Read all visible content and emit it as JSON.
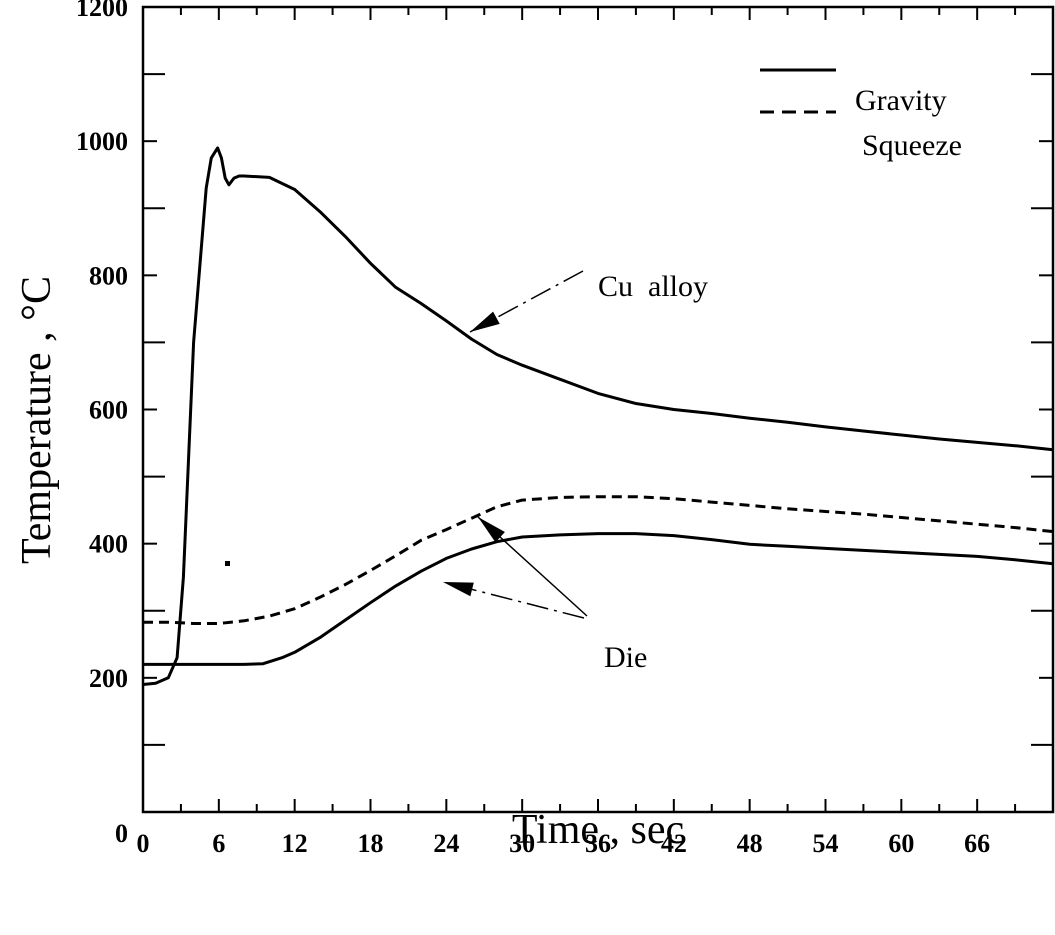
{
  "chart_data": {
    "type": "line",
    "xlabel": "Time , sec",
    "ylabel": "Temperature , °C",
    "xlim": [
      0,
      72
    ],
    "ylim": [
      0,
      1200
    ],
    "x_ticks": [
      "0",
      "6",
      "12",
      "18",
      "24",
      "30",
      "36",
      "42",
      "48",
      "54",
      "60",
      "66"
    ],
    "y_ticks": [
      "0",
      "200",
      "400",
      "600",
      "800",
      "1000",
      "1200"
    ],
    "grid": false,
    "legend": {
      "placement": "top-right",
      "entries": [
        {
          "label": "Gravity",
          "style": "solid"
        },
        {
          "label": "Squeeze",
          "style": "dashed"
        }
      ]
    },
    "annotations": [
      {
        "text": "Cu  alloy"
      },
      {
        "text": "Die"
      }
    ],
    "series": [
      {
        "style": "solid",
        "color": "#000000",
        "x": [
          0,
          1,
          2,
          2.7,
          3.2,
          4,
          5,
          5.4,
          5.9,
          6.2,
          6.5,
          6.8,
          7.2,
          7.6,
          8,
          10,
          12,
          14,
          16,
          18,
          20,
          22,
          24,
          26,
          28,
          30,
          33,
          36,
          39,
          42,
          45,
          48,
          51,
          54,
          57,
          60,
          63,
          66,
          69,
          72
        ],
        "y": [
          190,
          192,
          200,
          230,
          350,
          700,
          930,
          975,
          990,
          975,
          945,
          935,
          945,
          948,
          948,
          946,
          928,
          895,
          858,
          818,
          782,
          758,
          732,
          705,
          682,
          666,
          645,
          624,
          609,
          600,
          594,
          587,
          581,
          574,
          568,
          562,
          556,
          551,
          546,
          540
        ]
      },
      {
        "style": "solid",
        "color": "#000000",
        "x": [
          0,
          2,
          4,
          6,
          8,
          9.5,
          11,
          12,
          14,
          16,
          18,
          20,
          22,
          24,
          26,
          28,
          30,
          33,
          36,
          39,
          42,
          45,
          48,
          51,
          54,
          57,
          60,
          63,
          66,
          69,
          72
        ],
        "y": [
          220,
          220,
          220,
          220,
          220,
          221,
          230,
          238,
          260,
          286,
          312,
          337,
          359,
          378,
          392,
          403,
          410,
          413,
          415,
          415,
          412,
          406,
          399,
          396,
          393,
          390,
          387,
          384,
          381,
          376,
          370
        ]
      },
      {
        "style": "dashed",
        "color": "#000000",
        "x": [
          0,
          2,
          4,
          6,
          8,
          10,
          12,
          14,
          16,
          18,
          20,
          22,
          24,
          26,
          28,
          30,
          33,
          36,
          39,
          42,
          45,
          48,
          51,
          54,
          57,
          60,
          63,
          66,
          69,
          72
        ],
        "y": [
          283,
          283,
          281,
          281,
          285,
          292,
          303,
          320,
          339,
          360,
          382,
          405,
          421,
          438,
          455,
          465,
          469,
          470,
          470,
          467,
          462,
          457,
          452,
          448,
          444,
          439,
          434,
          429,
          424,
          418
        ]
      }
    ]
  }
}
